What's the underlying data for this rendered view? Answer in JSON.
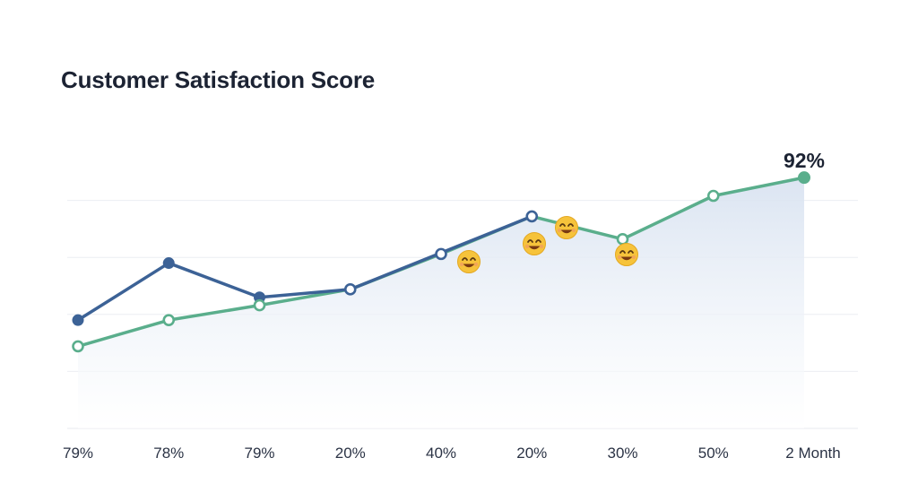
{
  "chart_data": {
    "type": "line",
    "title": "Customer Satisfaction Score",
    "xlabel": "",
    "ylabel": "",
    "categories": [
      "79%",
      "78%",
      "79%",
      "20%",
      "40%",
      "20%",
      "30%",
      "50%",
      "2 Month"
    ],
    "ylim": [
      70,
      95
    ],
    "grid": true,
    "series": [
      {
        "color": "#3c6296",
        "values": [
          79.5,
          84.5,
          81.5,
          82.2,
          85.4,
          88.6,
          null,
          null,
          null
        ]
      },
      {
        "color": "#5aae8c",
        "values": [
          77.2,
          79.5,
          80.8,
          82.2,
          85.3,
          88.6,
          86.6,
          90.4,
          92.0
        ],
        "area": true
      }
    ],
    "annotations": {
      "peak_label": "92%",
      "emoji": "😊",
      "emoji_count": 4
    },
    "colors": {
      "title": "#1c2333",
      "grid": "#eceef2",
      "area_top": "#d9e3f1",
      "area_bottom": "#ffffff"
    }
  }
}
